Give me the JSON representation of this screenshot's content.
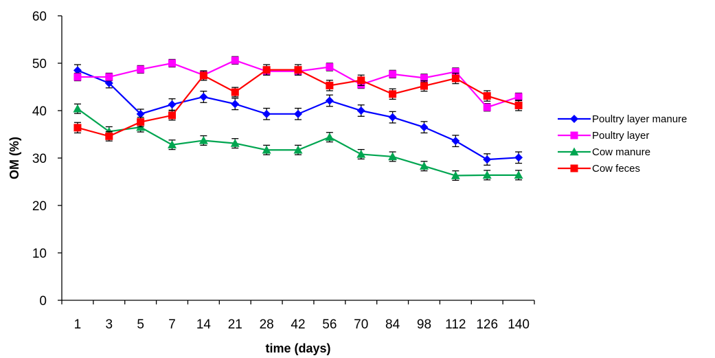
{
  "chart_data": {
    "type": "line",
    "xlabel": "time (days)",
    "ylabel": "OM (%)",
    "ylim": [
      0,
      60
    ],
    "yticks": [
      "0",
      "10",
      "20",
      "30",
      "40",
      "50",
      "60"
    ],
    "categories": [
      "1",
      "3",
      "5",
      "7",
      "14",
      "21",
      "28",
      "42",
      "56",
      "70",
      "84",
      "98",
      "112",
      "126",
      "140"
    ],
    "grid": false,
    "legend_position": "right",
    "error_bars": true,
    "series": [
      {
        "name": "Poultry layer manure",
        "color": "#0000FF",
        "marker": "diamond",
        "values": [
          48.5,
          45.8,
          39.3,
          41.3,
          42.9,
          41.4,
          39.3,
          39.3,
          42.1,
          40.0,
          38.6,
          36.5,
          33.6,
          29.7,
          30.1
        ],
        "errors": [
          1.2,
          1.0,
          1.0,
          1.2,
          1.2,
          1.2,
          1.2,
          1.2,
          1.2,
          1.2,
          1.2,
          1.2,
          1.2,
          1.2,
          1.2
        ]
      },
      {
        "name": "Poultry layer",
        "color": "#FF00FF",
        "marker": "square",
        "values": [
          47.1,
          47.1,
          48.7,
          50.0,
          47.5,
          50.6,
          48.3,
          48.3,
          49.2,
          45.5,
          47.7,
          46.9,
          48.2,
          40.7,
          42.9
        ],
        "errors": [
          0.8,
          0.8,
          0.8,
          0.8,
          0.8,
          0.8,
          0.8,
          0.8,
          0.8,
          0.8,
          0.8,
          0.8,
          0.8,
          0.8,
          0.8
        ]
      },
      {
        "name": "Cow manure",
        "color": "#00A550",
        "marker": "triangle",
        "values": [
          40.4,
          35.6,
          36.5,
          32.8,
          33.7,
          33.1,
          31.7,
          31.7,
          34.4,
          30.8,
          30.3,
          28.3,
          26.3,
          26.4,
          26.4
        ],
        "errors": [
          1.0,
          1.0,
          1.0,
          1.0,
          1.0,
          1.0,
          1.0,
          1.0,
          1.0,
          1.0,
          1.0,
          1.0,
          1.0,
          1.0,
          1.0
        ]
      },
      {
        "name": "Cow feces",
        "color": "#FF0000",
        "marker": "square",
        "values": [
          36.4,
          34.6,
          37.6,
          39.0,
          47.4,
          43.9,
          48.6,
          48.6,
          45.3,
          46.4,
          43.5,
          45.2,
          46.8,
          43.1,
          41.1
        ],
        "errors": [
          1.1,
          1.0,
          1.0,
          1.0,
          1.0,
          1.0,
          1.1,
          1.1,
          1.1,
          1.1,
          1.1,
          1.1,
          1.1,
          1.1,
          1.1
        ]
      }
    ]
  }
}
